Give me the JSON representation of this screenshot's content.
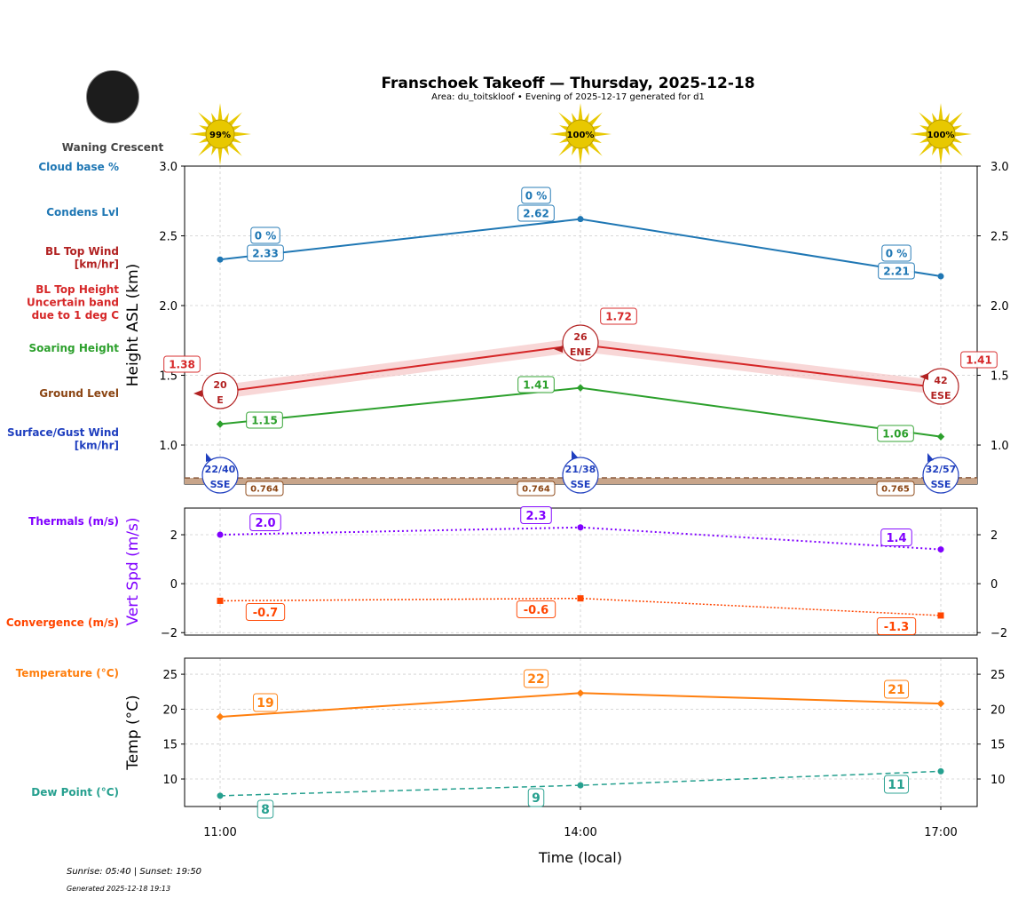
{
  "title": "Franschoek Takeoff — Thursday, 2025-12-18",
  "subtitle": "Area: du_toitskloof • Evening of 2025-12-17 generated for d1",
  "moon_phase": "Waning Crescent",
  "sunrise_sunset": "Sunrise: 05:40 | Sunset: 19:50",
  "generated": "Generated 2025-12-18 19:13",
  "row_labels": {
    "cloud": "Cloud base %",
    "condens": "Condens Lvl",
    "bl_wind": "BL Top Wind\n[km/hr]",
    "bl_top": "BL Top Height\nUncertain band\ndue to 1 deg C",
    "soaring": "Soaring Height",
    "ground": "Ground Level",
    "surface": "Surface/Gust Wind\n[km/hr]",
    "thermals": "Thermals (m/s)",
    "convergence": "Convergence (m/s)",
    "temperature": "Temperature (°C)",
    "dewpoint": "Dew Point (°C)"
  },
  "colors": {
    "condens": "#1f77b4",
    "bl_top": "#d62728",
    "bl_wind": "#b22222",
    "soaring": "#2ca02c",
    "ground": "#8b4513",
    "surface": "#1f3fbf",
    "thermals": "#8000ff",
    "convergence": "#ff4500",
    "temperature": "#ff7f0e",
    "dewpoint": "#26a08f",
    "sun": "#e8c800"
  },
  "chart_data": [
    {
      "type": "line",
      "ylabel": "Height ASL (km)",
      "ylim": [
        0.72,
        3.0
      ],
      "yticks": [
        1.0,
        1.5,
        2.0,
        2.5,
        3.0
      ],
      "grid": true,
      "x": [
        "11:00",
        "14:00",
        "17:00"
      ],
      "sun_percent": [
        "99%",
        "100%",
        "100%"
      ],
      "series": [
        {
          "key": "condens",
          "values": [
            2.33,
            2.62,
            2.21
          ],
          "labels": [
            "2.33",
            "2.62",
            "2.21"
          ],
          "cloud_base": [
            "0 %",
            "0 %",
            "0 %"
          ]
        },
        {
          "key": "bl_top",
          "values": [
            1.38,
            1.72,
            1.41
          ],
          "labels": [
            "1.38",
            "1.72",
            "1.41"
          ],
          "band": 0.05,
          "wind_speed": [
            "20",
            "26",
            "42"
          ],
          "wind_dir": [
            "E",
            "ENE",
            "ESE"
          ]
        },
        {
          "key": "soaring",
          "values": [
            1.15,
            1.41,
            1.06
          ],
          "labels": [
            "1.15",
            "1.41",
            "1.06"
          ]
        },
        {
          "key": "ground",
          "values": [
            0.764,
            0.764,
            0.765
          ],
          "labels": [
            "0.764",
            "0.764",
            "0.765"
          ]
        },
        {
          "key": "surface",
          "wind_speed": [
            "22/40",
            "21/38",
            "32/57"
          ],
          "wind_dir": [
            "SSE",
            "SSE",
            "SSE"
          ]
        }
      ]
    },
    {
      "type": "line",
      "ylabel": "Vert Spd (m/s)",
      "ylim": [
        -2.1,
        3.09
      ],
      "yticks": [
        -2,
        0,
        2
      ],
      "grid": true,
      "x": [
        "11:00",
        "14:00",
        "17:00"
      ],
      "series": [
        {
          "key": "thermals",
          "values": [
            2.0,
            2.3,
            1.4
          ],
          "labels": [
            "2.0",
            "2.3",
            "1.4"
          ]
        },
        {
          "key": "convergence",
          "values": [
            -0.7,
            -0.6,
            -1.3
          ],
          "labels": [
            "-0.7",
            "-0.6",
            "-1.3"
          ]
        }
      ]
    },
    {
      "type": "line",
      "ylabel": "Temp (°C)",
      "xlabel": "Time (local)",
      "ylim": [
        6.06,
        27.3
      ],
      "yticks": [
        10,
        15,
        20,
        25
      ],
      "grid": true,
      "x": [
        "11:00",
        "14:00",
        "17:00"
      ],
      "series": [
        {
          "key": "temperature",
          "values": [
            18.9,
            22.3,
            20.8
          ],
          "labels": [
            "19",
            "22",
            "21"
          ]
        },
        {
          "key": "dewpoint",
          "values": [
            7.6,
            9.1,
            11.1
          ],
          "labels": [
            "8",
            "9",
            "11"
          ]
        }
      ]
    }
  ]
}
